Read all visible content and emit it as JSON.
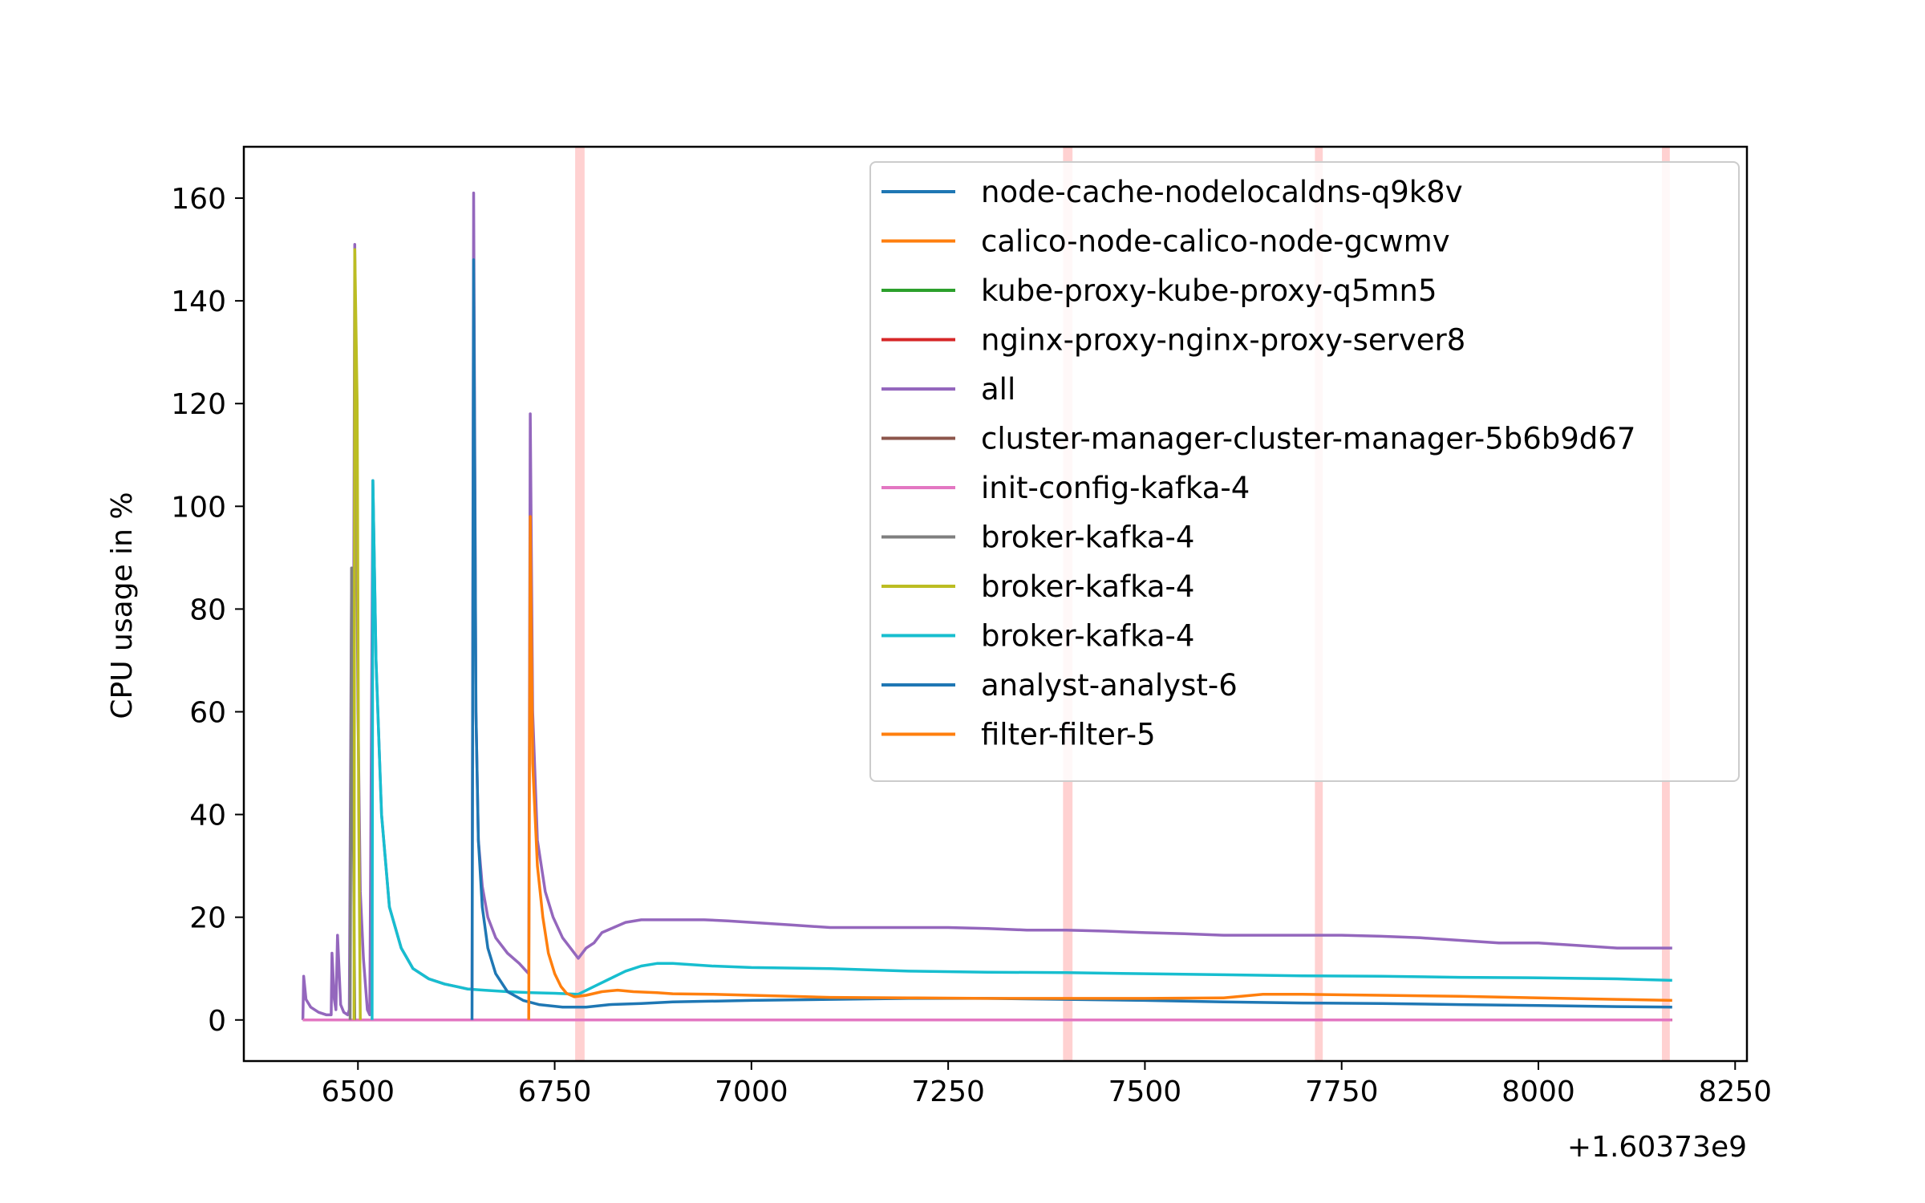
{
  "chart_data": {
    "type": "line",
    "title": "",
    "xlabel": "",
    "ylabel": "CPU usage in %",
    "x_offset_label": "+1.60373e9",
    "xlim": [
      6355,
      8265
    ],
    "ylim": [
      -8,
      170
    ],
    "xticks": [
      6500,
      6750,
      7000,
      7250,
      7500,
      7750,
      8000,
      8250
    ],
    "xtick_labels": [
      "6500",
      "6750",
      "7000",
      "7250",
      "7500",
      "7750",
      "8000",
      "8250"
    ],
    "yticks": [
      0,
      20,
      40,
      60,
      80,
      100,
      120,
      140,
      160
    ],
    "ytick_labels": [
      "0",
      "20",
      "40",
      "60",
      "80",
      "100",
      "120",
      "140",
      "160"
    ],
    "grid": false,
    "legend_position": "upper right",
    "highlight_bands": [
      {
        "x0": 6776,
        "x1": 6788,
        "color": "#ffcccc"
      },
      {
        "x0": 7396,
        "x1": 7408,
        "color": "#ffcccc"
      },
      {
        "x0": 7716,
        "x1": 7726,
        "color": "#ffcccc"
      },
      {
        "x0": 8157,
        "x1": 8167,
        "color": "#ffcccc"
      }
    ],
    "series": [
      {
        "name": "node-cache-nodelocaldns-q9k8v",
        "color": "#1f77b4",
        "points": [
          [
            6430,
            0
          ],
          [
            8170,
            0
          ]
        ]
      },
      {
        "name": "calico-node-calico-node-gcwmv",
        "color": "#ff7f0e",
        "points": [
          [
            6430,
            0
          ],
          [
            8170,
            0
          ]
        ]
      },
      {
        "name": "kube-proxy-kube-proxy-q5mn5",
        "color": "#2ca02c",
        "points": [
          [
            6430,
            0
          ],
          [
            8170,
            0
          ]
        ]
      },
      {
        "name": "nginx-proxy-nginx-proxy-server8",
        "color": "#d62728",
        "points": [
          [
            6430,
            0
          ],
          [
            8170,
            0
          ]
        ]
      },
      {
        "name": "all",
        "color": "#9467bd",
        "points": [
          [
            6430,
            0
          ],
          [
            6431,
            8.5
          ],
          [
            6434,
            4
          ],
          [
            6440,
            2.5
          ],
          [
            6450,
            1.5
          ],
          [
            6460,
            1
          ],
          [
            6466,
            1
          ],
          [
            6467,
            13
          ],
          [
            6470,
            4
          ],
          [
            6472,
            2
          ],
          [
            6474,
            16.5
          ],
          [
            6478,
            3
          ],
          [
            6482,
            1.5
          ],
          [
            6487,
            1
          ],
          [
            6489,
            2
          ],
          [
            6492,
            88
          ],
          [
            6494,
            50
          ],
          [
            6496,
            151
          ],
          [
            6500,
            60
          ],
          [
            6503,
            25
          ],
          [
            6507,
            12
          ],
          [
            6512,
            2
          ],
          [
            6515,
            1
          ],
          [
            6519,
            105
          ],
          [
            6523,
            70
          ],
          [
            6530,
            40
          ],
          [
            6540,
            22
          ],
          [
            6555,
            14
          ],
          [
            6570,
            10
          ],
          [
            6590,
            8
          ],
          [
            6610,
            7
          ],
          [
            6625,
            6.5
          ],
          [
            6640,
            6
          ],
          [
            6645,
            6
          ],
          [
            6647,
            161
          ],
          [
            6650,
            60
          ],
          [
            6653,
            35
          ],
          [
            6658,
            26
          ],
          [
            6665,
            20
          ],
          [
            6675,
            16
          ],
          [
            6690,
            13
          ],
          [
            6705,
            11
          ],
          [
            6714,
            9.5
          ],
          [
            6717,
            9
          ],
          [
            6719,
            118
          ],
          [
            6722,
            60
          ],
          [
            6728,
            35
          ],
          [
            6738,
            25
          ],
          [
            6748,
            20
          ],
          [
            6760,
            16
          ],
          [
            6770,
            14
          ],
          [
            6780,
            12
          ],
          [
            6790,
            14
          ],
          [
            6800,
            15
          ],
          [
            6810,
            17
          ],
          [
            6825,
            18
          ],
          [
            6840,
            19
          ],
          [
            6860,
            19.5
          ],
          [
            6880,
            19.5
          ],
          [
            6900,
            19.5
          ],
          [
            6920,
            19.5
          ],
          [
            6940,
            19.5
          ],
          [
            6970,
            19.3
          ],
          [
            7000,
            19
          ],
          [
            7050,
            18.5
          ],
          [
            7100,
            18
          ],
          [
            7150,
            18
          ],
          [
            7200,
            18
          ],
          [
            7250,
            18
          ],
          [
            7300,
            17.8
          ],
          [
            7350,
            17.5
          ],
          [
            7400,
            17.5
          ],
          [
            7450,
            17.3
          ],
          [
            7500,
            17
          ],
          [
            7550,
            16.8
          ],
          [
            7600,
            16.5
          ],
          [
            7650,
            16.5
          ],
          [
            7700,
            16.5
          ],
          [
            7750,
            16.5
          ],
          [
            7800,
            16.3
          ],
          [
            7850,
            16
          ],
          [
            7900,
            15.5
          ],
          [
            7950,
            15
          ],
          [
            8000,
            15
          ],
          [
            8050,
            14.5
          ],
          [
            8100,
            14
          ],
          [
            8150,
            14
          ],
          [
            8170,
            14
          ]
        ]
      },
      {
        "name": "cluster-manager-cluster-manager-5b6b9d67",
        "color": "#8c564b",
        "points": [
          [
            6430,
            0
          ],
          [
            8170,
            0
          ]
        ]
      },
      {
        "name": "init-config-kafka-4",
        "color": "#e377c2",
        "points": [
          [
            6430,
            0
          ],
          [
            8170,
            0
          ]
        ]
      },
      {
        "name": "broker-kafka-4",
        "color": "#7f7f7f",
        "points": [
          [
            6490,
            0
          ],
          [
            6492,
            88
          ],
          [
            6494,
            40
          ],
          [
            6496,
            0
          ]
        ]
      },
      {
        "name": "broker-kafka-4",
        "color": "#bcbd22",
        "points": [
          [
            6495,
            0
          ],
          [
            6496,
            150
          ],
          [
            6499,
            120
          ],
          [
            6501,
            41
          ],
          [
            6503,
            0
          ]
        ]
      },
      {
        "name": "broker-kafka-4",
        "color": "#17becf",
        "points": [
          [
            6518,
            0
          ],
          [
            6519,
            105
          ],
          [
            6523,
            70
          ],
          [
            6530,
            40
          ],
          [
            6540,
            22
          ],
          [
            6555,
            14
          ],
          [
            6570,
            10
          ],
          [
            6590,
            8
          ],
          [
            6610,
            7
          ],
          [
            6625,
            6.5
          ],
          [
            6640,
            6
          ],
          [
            6660,
            5.8
          ],
          [
            6690,
            5.5
          ],
          [
            6720,
            5.3
          ],
          [
            6750,
            5.2
          ],
          [
            6780,
            5
          ],
          [
            6800,
            6.5
          ],
          [
            6820,
            8
          ],
          [
            6840,
            9.5
          ],
          [
            6860,
            10.5
          ],
          [
            6880,
            11
          ],
          [
            6900,
            11
          ],
          [
            6950,
            10.5
          ],
          [
            7000,
            10.2
          ],
          [
            7100,
            10
          ],
          [
            7200,
            9.5
          ],
          [
            7300,
            9.3
          ],
          [
            7400,
            9.2
          ],
          [
            7500,
            9
          ],
          [
            7600,
            8.8
          ],
          [
            7700,
            8.6
          ],
          [
            7800,
            8.5
          ],
          [
            7900,
            8.3
          ],
          [
            8000,
            8.2
          ],
          [
            8100,
            8
          ],
          [
            8170,
            7.7
          ]
        ]
      },
      {
        "name": "analyst-analyst-6",
        "color": "#1f77b4",
        "points": [
          [
            6645,
            0
          ],
          [
            6647,
            148
          ],
          [
            6650,
            60
          ],
          [
            6653,
            35
          ],
          [
            6658,
            22
          ],
          [
            6665,
            14
          ],
          [
            6675,
            9
          ],
          [
            6690,
            5.5
          ],
          [
            6710,
            3.8
          ],
          [
            6730,
            3
          ],
          [
            6760,
            2.5
          ],
          [
            6790,
            2.5
          ],
          [
            6820,
            3
          ],
          [
            6860,
            3.2
          ],
          [
            6900,
            3.5
          ],
          [
            7000,
            3.8
          ],
          [
            7100,
            4
          ],
          [
            7200,
            4.2
          ],
          [
            7300,
            4.2
          ],
          [
            7400,
            4
          ],
          [
            7500,
            3.8
          ],
          [
            7600,
            3.5
          ],
          [
            7700,
            3.3
          ],
          [
            7800,
            3.2
          ],
          [
            7900,
            3
          ],
          [
            8000,
            2.8
          ],
          [
            8100,
            2.6
          ],
          [
            8170,
            2.5
          ]
        ]
      },
      {
        "name": "filter-filter-5",
        "color": "#ff7f0e",
        "points": [
          [
            6717,
            0
          ],
          [
            6719,
            98
          ],
          [
            6722,
            50
          ],
          [
            6728,
            30
          ],
          [
            6735,
            20
          ],
          [
            6742,
            13
          ],
          [
            6750,
            9
          ],
          [
            6758,
            6.5
          ],
          [
            6765,
            5.2
          ],
          [
            6775,
            4.5
          ],
          [
            6790,
            4.8
          ],
          [
            6810,
            5.5
          ],
          [
            6830,
            5.8
          ],
          [
            6850,
            5.5
          ],
          [
            6880,
            5.3
          ],
          [
            6900,
            5.1
          ],
          [
            6950,
            5
          ],
          [
            7000,
            4.8
          ],
          [
            7050,
            4.6
          ],
          [
            7100,
            4.4
          ],
          [
            7200,
            4.3
          ],
          [
            7300,
            4.2
          ],
          [
            7400,
            4.2
          ],
          [
            7500,
            4.2
          ],
          [
            7600,
            4.3
          ],
          [
            7650,
            5
          ],
          [
            7700,
            5
          ],
          [
            7800,
            4.8
          ],
          [
            7900,
            4.6
          ],
          [
            8000,
            4.3
          ],
          [
            8100,
            4
          ],
          [
            8170,
            3.8
          ]
        ]
      }
    ]
  }
}
